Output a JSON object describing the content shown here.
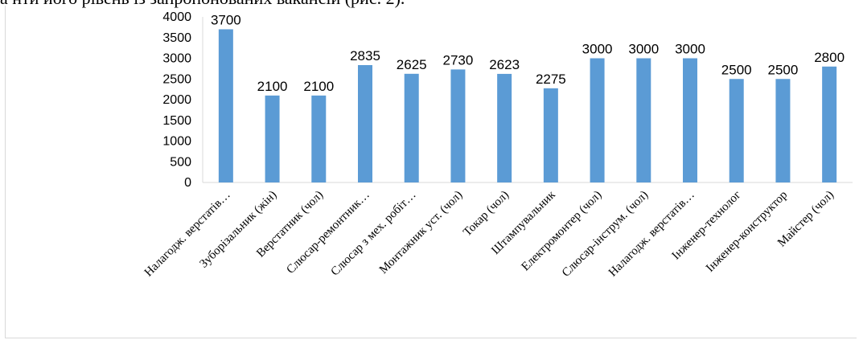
{
  "document": {
    "top_text": "а нти його рівень із запропонованих вакансій (рис. 2)."
  },
  "chart_data": {
    "type": "bar",
    "categories": [
      "Налагодж. верстатів…",
      "Зуборізальник (жін)",
      "Верстатник (чол)",
      "Слюсар-ремонтник…",
      "Слюсар з мех. робіт…",
      "Монтажник уст. (чол)",
      "Токар (чол)",
      "Штампувальник",
      "Електромонтер (чол)",
      "Слюсар-інструм. (чол)",
      "Налагодж. верстатів…",
      "Інженер-технолог",
      "Інженер-конструктор",
      "Майстер (чол)"
    ],
    "values": [
      3700,
      2100,
      2100,
      2835,
      2625,
      2730,
      2623,
      2275,
      3000,
      3000,
      3000,
      2500,
      2500,
      2800
    ],
    "ylim": [
      0,
      4000
    ],
    "yticks": [
      0,
      500,
      1000,
      1500,
      2000,
      2500,
      3000,
      3500,
      4000
    ],
    "grid": false,
    "data_labels": true,
    "bar_color": "#5b9bd5"
  }
}
